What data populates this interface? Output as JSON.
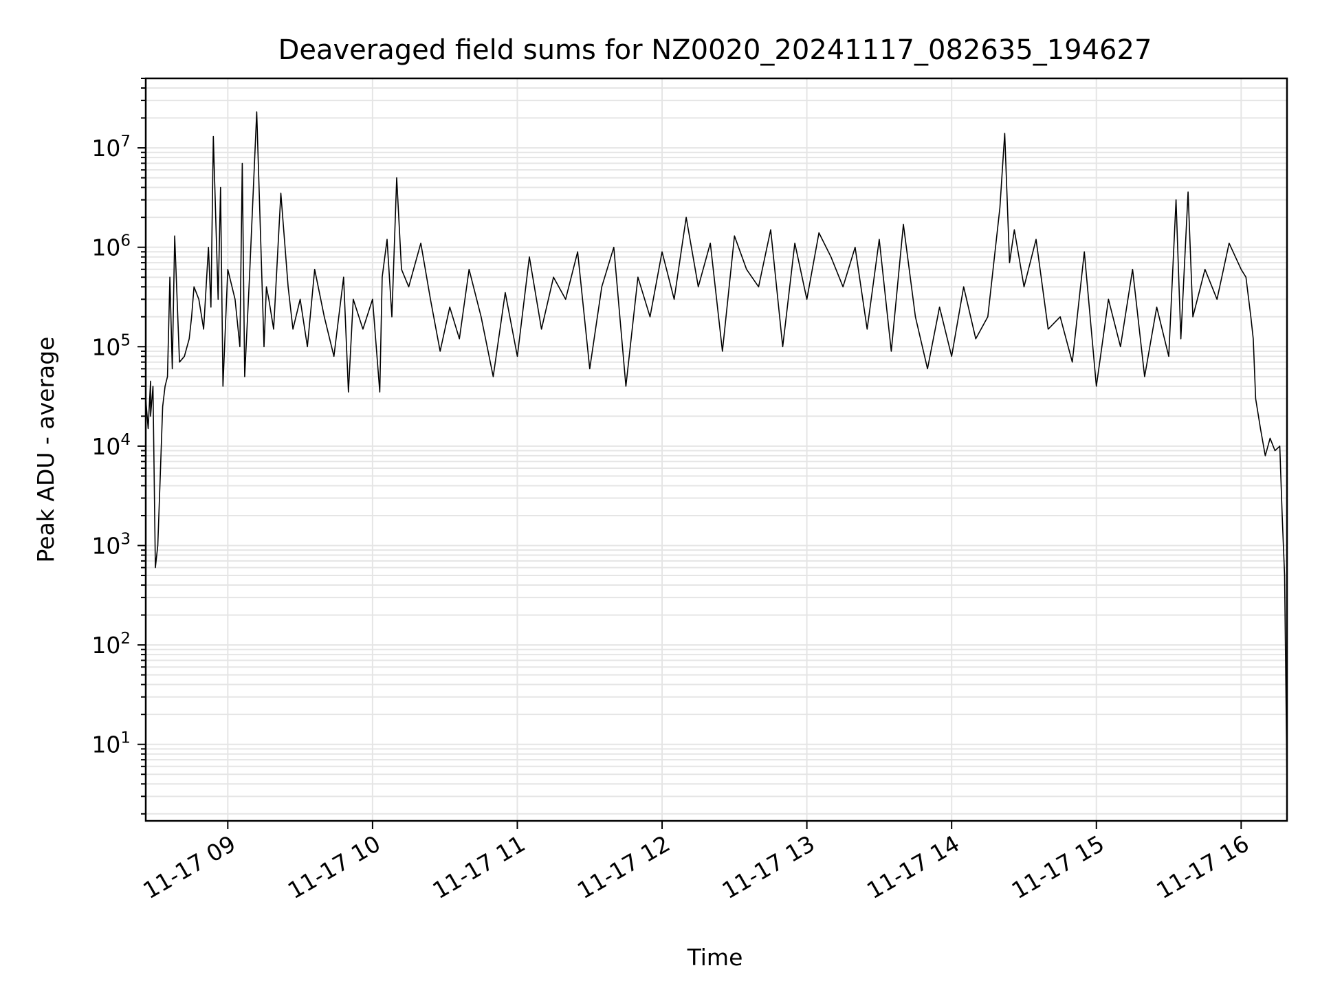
{
  "chart_data": {
    "type": "line",
    "title": "Deaveraged field sums for NZ0020_20241117_082635_194627",
    "xlabel": "Time",
    "ylabel": "Peak ADU - average",
    "y_scale": "log",
    "grid": true,
    "line_color": "#000000",
    "grid_color": "#e5e5e5",
    "x_range": [
      "2024-11-17 08:26",
      "2024-11-17 16:19"
    ],
    "ylim": [
      1.7,
      50000000
    ],
    "x_ticks": [
      {
        "t": "2024-11-17 09:00",
        "label": "11-17 09"
      },
      {
        "t": "2024-11-17 10:00",
        "label": "11-17 10"
      },
      {
        "t": "2024-11-17 11:00",
        "label": "11-17 11"
      },
      {
        "t": "2024-11-17 12:00",
        "label": "11-17 12"
      },
      {
        "t": "2024-11-17 13:00",
        "label": "11-17 13"
      },
      {
        "t": "2024-11-17 14:00",
        "label": "11-17 14"
      },
      {
        "t": "2024-11-17 15:00",
        "label": "11-17 15"
      },
      {
        "t": "2024-11-17 16:00",
        "label": "11-17 16"
      }
    ],
    "y_ticks": [
      {
        "v": 10,
        "base": "10",
        "exp": "1"
      },
      {
        "v": 100,
        "base": "10",
        "exp": "2"
      },
      {
        "v": 1000,
        "base": "10",
        "exp": "3"
      },
      {
        "v": 10000,
        "base": "10",
        "exp": "4"
      },
      {
        "v": 100000,
        "base": "10",
        "exp": "5"
      },
      {
        "v": 1000000,
        "base": "10",
        "exp": "6"
      },
      {
        "v": 10000000,
        "base": "10",
        "exp": "7"
      }
    ],
    "series": [
      {
        "x": [
          "2024-11-17 08:26",
          "2024-11-17 08:27",
          "2024-11-17 08:28",
          "2024-11-17 08:28",
          "2024-11-17 08:29",
          "2024-11-17 08:30",
          "2024-11-17 08:31",
          "2024-11-17 08:32",
          "2024-11-17 08:33",
          "2024-11-17 08:34",
          "2024-11-17 08:35",
          "2024-11-17 08:36",
          "2024-11-17 08:37",
          "2024-11-17 08:38",
          "2024-11-17 08:40",
          "2024-11-17 08:42",
          "2024-11-17 08:44",
          "2024-11-17 08:45",
          "2024-11-17 08:46",
          "2024-11-17 08:48",
          "2024-11-17 08:50",
          "2024-11-17 08:52",
          "2024-11-17 08:53",
          "2024-11-17 08:54",
          "2024-11-17 08:56",
          "2024-11-17 08:57",
          "2024-11-17 08:58",
          "2024-11-17 09:00",
          "2024-11-17 09:03",
          "2024-11-17 09:05",
          "2024-11-17 09:06",
          "2024-11-17 09:07",
          "2024-11-17 09:09",
          "2024-11-17 09:12",
          "2024-11-17 09:15",
          "2024-11-17 09:16",
          "2024-11-17 09:17",
          "2024-11-17 09:19",
          "2024-11-17 09:22",
          "2024-11-17 09:25",
          "2024-11-17 09:27",
          "2024-11-17 09:30",
          "2024-11-17 09:33",
          "2024-11-17 09:36",
          "2024-11-17 09:40",
          "2024-11-17 09:44",
          "2024-11-17 09:48",
          "2024-11-17 09:50",
          "2024-11-17 09:52",
          "2024-11-17 09:56",
          "2024-11-17 10:00",
          "2024-11-17 10:03",
          "2024-11-17 10:04",
          "2024-11-17 10:06",
          "2024-11-17 10:08",
          "2024-11-17 10:10",
          "2024-11-17 10:12",
          "2024-11-17 10:15",
          "2024-11-17 10:20",
          "2024-11-17 10:24",
          "2024-11-17 10:28",
          "2024-11-17 10:32",
          "2024-11-17 10:36",
          "2024-11-17 10:40",
          "2024-11-17 10:45",
          "2024-11-17 10:50",
          "2024-11-17 10:55",
          "2024-11-17 11:00",
          "2024-11-17 11:05",
          "2024-11-17 11:10",
          "2024-11-17 11:15",
          "2024-11-17 11:20",
          "2024-11-17 11:25",
          "2024-11-17 11:30",
          "2024-11-17 11:35",
          "2024-11-17 11:40",
          "2024-11-17 11:45",
          "2024-11-17 11:50",
          "2024-11-17 11:55",
          "2024-11-17 12:00",
          "2024-11-17 12:05",
          "2024-11-17 12:10",
          "2024-11-17 12:15",
          "2024-11-17 12:20",
          "2024-11-17 12:25",
          "2024-11-17 12:30",
          "2024-11-17 12:35",
          "2024-11-17 12:40",
          "2024-11-17 12:45",
          "2024-11-17 12:50",
          "2024-11-17 12:55",
          "2024-11-17 13:00",
          "2024-11-17 13:05",
          "2024-11-17 13:10",
          "2024-11-17 13:15",
          "2024-11-17 13:20",
          "2024-11-17 13:25",
          "2024-11-17 13:30",
          "2024-11-17 13:35",
          "2024-11-17 13:40",
          "2024-11-17 13:45",
          "2024-11-17 13:50",
          "2024-11-17 13:55",
          "2024-11-17 14:00",
          "2024-11-17 14:05",
          "2024-11-17 14:10",
          "2024-11-17 14:15",
          "2024-11-17 14:20",
          "2024-11-17 14:22",
          "2024-11-17 14:24",
          "2024-11-17 14:26",
          "2024-11-17 14:30",
          "2024-11-17 14:35",
          "2024-11-17 14:40",
          "2024-11-17 14:45",
          "2024-11-17 14:50",
          "2024-11-17 14:55",
          "2024-11-17 15:00",
          "2024-11-17 15:05",
          "2024-11-17 15:10",
          "2024-11-17 15:15",
          "2024-11-17 15:20",
          "2024-11-17 15:25",
          "2024-11-17 15:30",
          "2024-11-17 15:33",
          "2024-11-17 15:35",
          "2024-11-17 15:38",
          "2024-11-17 15:40",
          "2024-11-17 15:45",
          "2024-11-17 15:50",
          "2024-11-17 15:55",
          "2024-11-17 16:00",
          "2024-11-17 16:02",
          "2024-11-17 16:04",
          "2024-11-17 16:05",
          "2024-11-17 16:06",
          "2024-11-17 16:08",
          "2024-11-17 16:10",
          "2024-11-17 16:12",
          "2024-11-17 16:14",
          "2024-11-17 16:16",
          "2024-11-17 16:17",
          "2024-11-17 16:18",
          "2024-11-17 16:19"
        ],
        "y": [
          30000,
          15000,
          45000,
          20000,
          40000,
          600,
          1000,
          5000,
          25000,
          40000,
          50000,
          500000,
          60000,
          1300000,
          70000,
          80000,
          120000,
          200000,
          400000,
          300000,
          150000,
          1000000,
          250000,
          13000000,
          300000,
          4000000,
          40000,
          600000,
          300000,
          100000,
          7000000,
          50000,
          500000,
          23000000,
          100000,
          400000,
          300000,
          150000,
          3500000,
          400000,
          150000,
          300000,
          100000,
          600000,
          200000,
          80000,
          500000,
          35000,
          300000,
          150000,
          300000,
          35000,
          500000,
          1200000,
          200000,
          5000000,
          600000,
          400000,
          1100000,
          300000,
          90000,
          250000,
          120000,
          600000,
          200000,
          50000,
          350000,
          80000,
          800000,
          150000,
          500000,
          300000,
          900000,
          60000,
          400000,
          1000000,
          40000,
          500000,
          200000,
          900000,
          300000,
          2000000,
          400000,
          1100000,
          90000,
          1300000,
          600000,
          400000,
          1500000,
          100000,
          1100000,
          300000,
          1400000,
          800000,
          400000,
          1000000,
          150000,
          1200000,
          90000,
          1700000,
          200000,
          60000,
          250000,
          80000,
          400000,
          120000,
          200000,
          2500000,
          14000000,
          700000,
          1500000,
          400000,
          1200000,
          150000,
          200000,
          70000,
          900000,
          40000,
          300000,
          100000,
          600000,
          50000,
          250000,
          80000,
          3000000,
          120000,
          3600000,
          200000,
          600000,
          300000,
          1100000,
          600000,
          500000,
          200000,
          120000,
          30000,
          15000,
          8000,
          12000,
          9000,
          10000,
          2000,
          500,
          4
        ],
        "yw": []
      }
    ]
  }
}
